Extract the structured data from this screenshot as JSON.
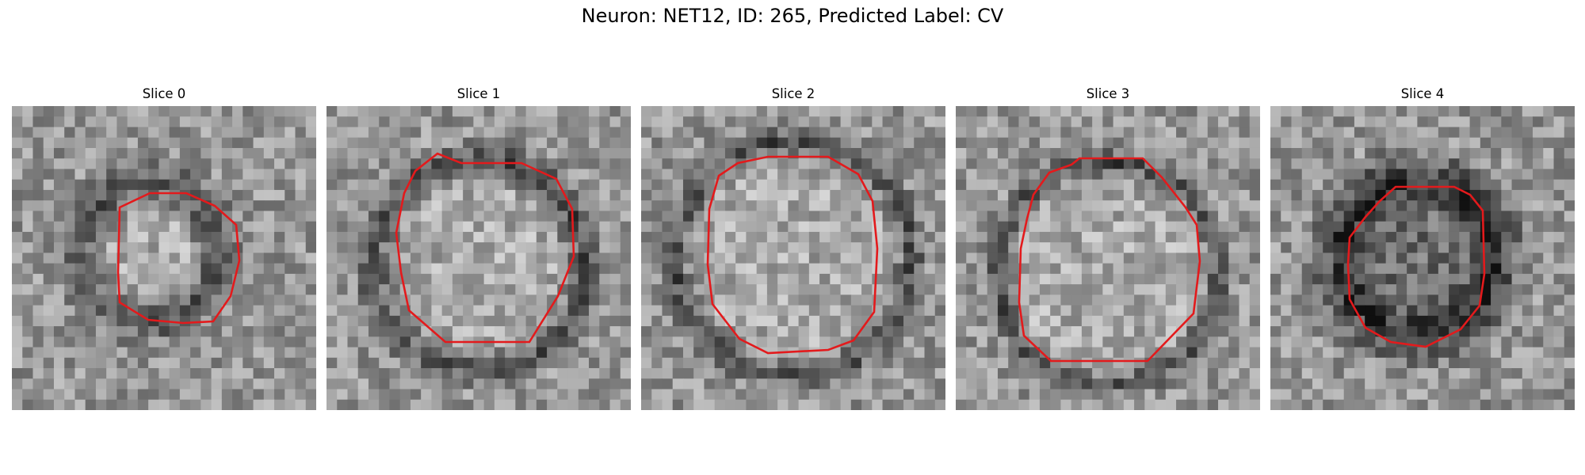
{
  "figure": {
    "title": "Neuron: NET12, ID: 265, Predicted Label: CV"
  },
  "panels": [
    {
      "title": "Slice 0"
    },
    {
      "title": "Slice 1"
    },
    {
      "title": "Slice 2"
    },
    {
      "title": "Slice 3"
    },
    {
      "title": "Slice 4"
    }
  ],
  "colors": {
    "contour": "#e31a1c",
    "background": "#ffffff"
  }
}
